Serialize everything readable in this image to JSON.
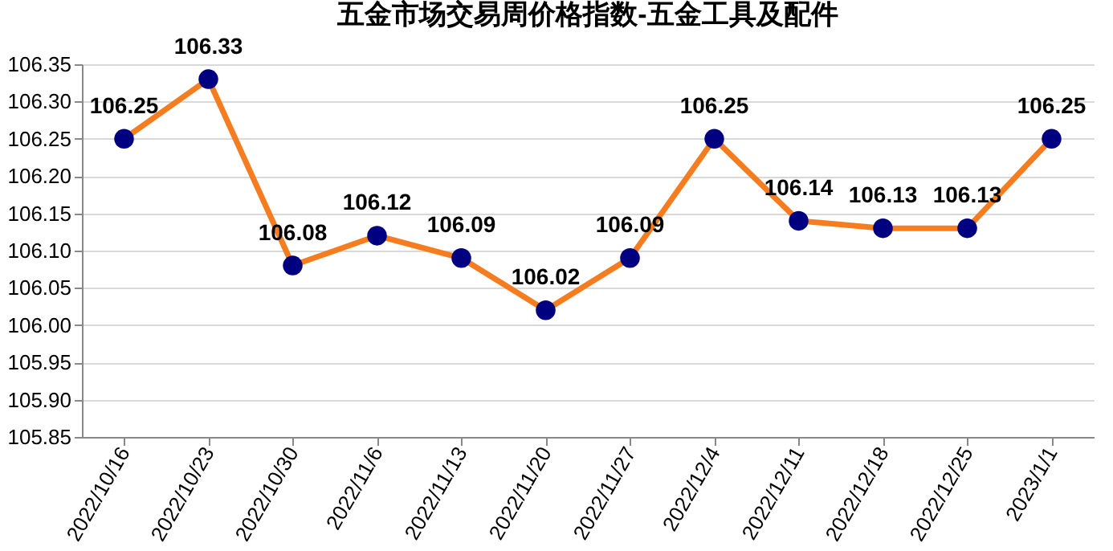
{
  "chart_data": {
    "type": "line",
    "title": "五金市场交易周价格指数-五金工具及配件",
    "categories": [
      "2022/10/16",
      "2022/10/23",
      "2022/10/30",
      "2022/11/6",
      "2022/11/13",
      "2022/11/20",
      "2022/11/27",
      "2022/12/4",
      "2022/12/11",
      "2022/12/18",
      "2022/12/25",
      "2023/1/1"
    ],
    "series": [
      {
        "color": "#f57c1f",
        "values": [
          106.25,
          106.33,
          106.08,
          106.12,
          106.09,
          106.02,
          106.09,
          106.25,
          106.14,
          106.13,
          106.13,
          106.25
        ]
      }
    ],
    "ylim": [
      105.85,
      106.35
    ],
    "yticks": [
      105.85,
      {
        "value": 105.9,
        "label": "105.90"
      },
      105.95,
      {
        "value": 106,
        "label": "106.00"
      },
      106.05,
      {
        "value": 106.1,
        "label": "106.10"
      },
      106.15,
      {
        "value": 106.2,
        "label": "106.20"
      },
      106.25,
      {
        "value": 106.3,
        "label": "106.30"
      },
      106.35
    ],
    "grid": "y",
    "marker": "circle",
    "line_style": "solid",
    "data_labels": true,
    "legend": false
  }
}
